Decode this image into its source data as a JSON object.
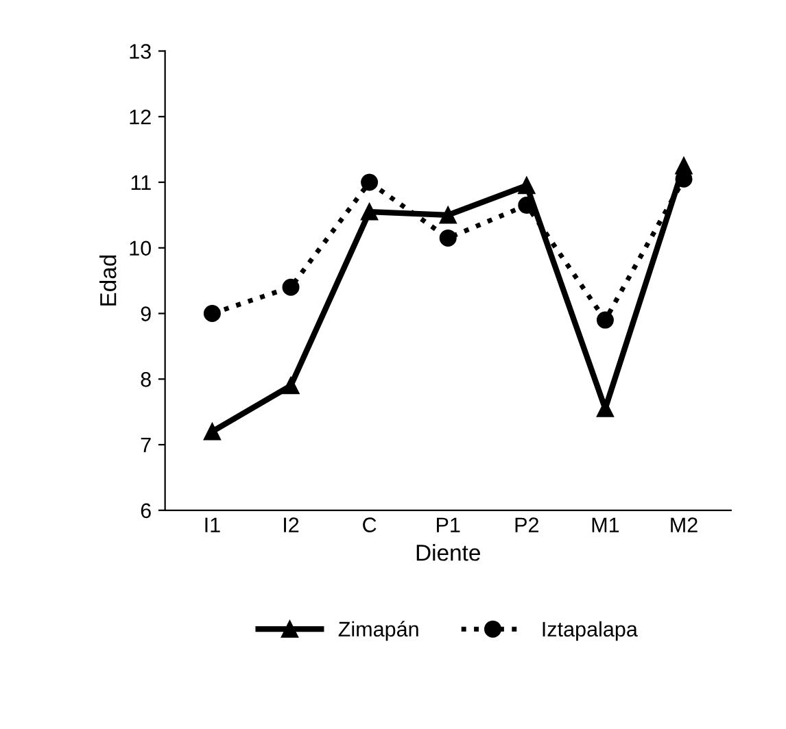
{
  "chart_data": {
    "type": "line",
    "xlabel": "Diente",
    "ylabel": "Edad",
    "categories": [
      "I1",
      "I2",
      "C",
      "P1",
      "P2",
      "M1",
      "M2"
    ],
    "series": [
      {
        "name": "Zimapán",
        "color": "#000000",
        "marker": "triangle",
        "line_style": "solid",
        "values": [
          7.2,
          7.9,
          10.55,
          10.5,
          10.95,
          7.55,
          11.25
        ]
      },
      {
        "name": "Iztapalapa",
        "color": "#000000",
        "marker": "circle",
        "line_style": "dotted",
        "values": [
          9.0,
          9.4,
          11.0,
          10.15,
          10.65,
          8.9,
          11.05
        ]
      }
    ],
    "ylim": [
      6,
      13
    ],
    "yticks": [
      6,
      7,
      8,
      9,
      10,
      11,
      12,
      13
    ],
    "grid": false,
    "legend": "bottom"
  }
}
